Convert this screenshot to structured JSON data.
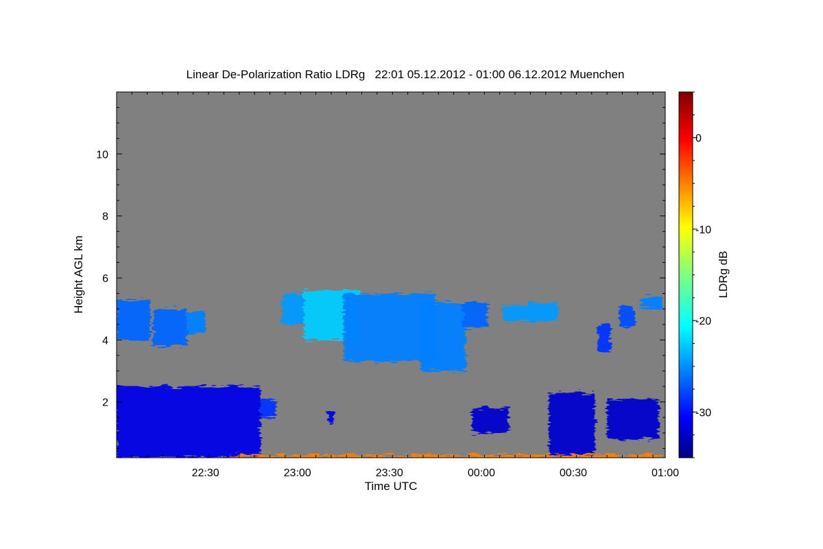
{
  "chart_data": {
    "type": "heatmap",
    "title": "Linear De-Polarization Ratio LDRg   22:01 05.12.2012 - 01:00 06.12.2012 Muenchen",
    "xlabel": "Time UTC",
    "ylabel": "Height AGL km",
    "x_range": [
      "22:01",
      "01:00"
    ],
    "x_ticks": [
      "22:30",
      "23:00",
      "23:30",
      "00:00",
      "00:30",
      "01:00"
    ],
    "ylim": [
      0.2,
      12
    ],
    "y_ticks": [
      2,
      4,
      6,
      8,
      10
    ],
    "background_color": "#808080",
    "colorbar": {
      "label": "LDRg dB",
      "range": [
        -35,
        5
      ],
      "ticks": [
        0,
        -10,
        -20,
        -30
      ],
      "colormap": "jet"
    },
    "features": [
      {
        "x_start": "22:01",
        "x_end": "22:48",
        "bottom_km": 0.2,
        "top_km": 2.5,
        "ldr_db": -31
      },
      {
        "x_start": "22:48",
        "x_end": "22:53",
        "bottom_km": 1.5,
        "top_km": 2.1,
        "ldr_db": -28
      },
      {
        "x_start": "22:01",
        "x_end": "22:12",
        "bottom_km": 4.0,
        "top_km": 5.3,
        "ldr_db": -26
      },
      {
        "x_start": "22:13",
        "x_end": "22:24",
        "bottom_km": 3.8,
        "top_km": 5.0,
        "ldr_db": -26
      },
      {
        "x_start": "22:24",
        "x_end": "22:30",
        "bottom_km": 4.2,
        "top_km": 4.9,
        "ldr_db": -25
      },
      {
        "x_start": "22:55",
        "x_end": "23:02",
        "bottom_km": 4.5,
        "top_km": 5.5,
        "ldr_db": -24
      },
      {
        "x_start": "23:02",
        "x_end": "23:20",
        "bottom_km": 4.0,
        "top_km": 5.6,
        "ldr_db": -22
      },
      {
        "x_start": "23:15",
        "x_end": "23:45",
        "bottom_km": 3.3,
        "top_km": 5.5,
        "ldr_db": -25
      },
      {
        "x_start": "23:40",
        "x_end": "23:55",
        "bottom_km": 3.0,
        "top_km": 5.2,
        "ldr_db": -25
      },
      {
        "x_start": "23:54",
        "x_end": "24:02",
        "bottom_km": 4.4,
        "top_km": 5.2,
        "ldr_db": -26
      },
      {
        "x_start": "24:07",
        "x_end": "24:15",
        "bottom_km": 4.6,
        "top_km": 5.1,
        "ldr_db": -24
      },
      {
        "x_start": "24:15",
        "x_end": "24:25",
        "bottom_km": 4.6,
        "top_km": 5.2,
        "ldr_db": -24
      },
      {
        "x_start": "24:38",
        "x_end": "24:42",
        "bottom_km": 3.6,
        "top_km": 4.5,
        "ldr_db": -28
      },
      {
        "x_start": "24:45",
        "x_end": "24:50",
        "bottom_km": 4.4,
        "top_km": 5.1,
        "ldr_db": -27
      },
      {
        "x_start": "24:52",
        "x_end": "24:59",
        "bottom_km": 5.0,
        "top_km": 5.4,
        "ldr_db": -25
      },
      {
        "x_start": "23:10",
        "x_end": "23:12",
        "bottom_km": 1.3,
        "top_km": 1.7,
        "ldr_db": -31
      },
      {
        "x_start": "23:57",
        "x_end": "24:09",
        "bottom_km": 1.0,
        "top_km": 1.8,
        "ldr_db": -32
      },
      {
        "x_start": "24:22",
        "x_end": "24:37",
        "bottom_km": 0.3,
        "top_km": 2.3,
        "ldr_db": -32
      },
      {
        "x_start": "24:41",
        "x_end": "24:58",
        "bottom_km": 0.8,
        "top_km": 2.1,
        "ldr_db": -32
      },
      {
        "x_start": "22:38",
        "x_end": "24:59",
        "bottom_km": 0.2,
        "top_km": 0.3,
        "ldr_db": -5
      }
    ]
  }
}
